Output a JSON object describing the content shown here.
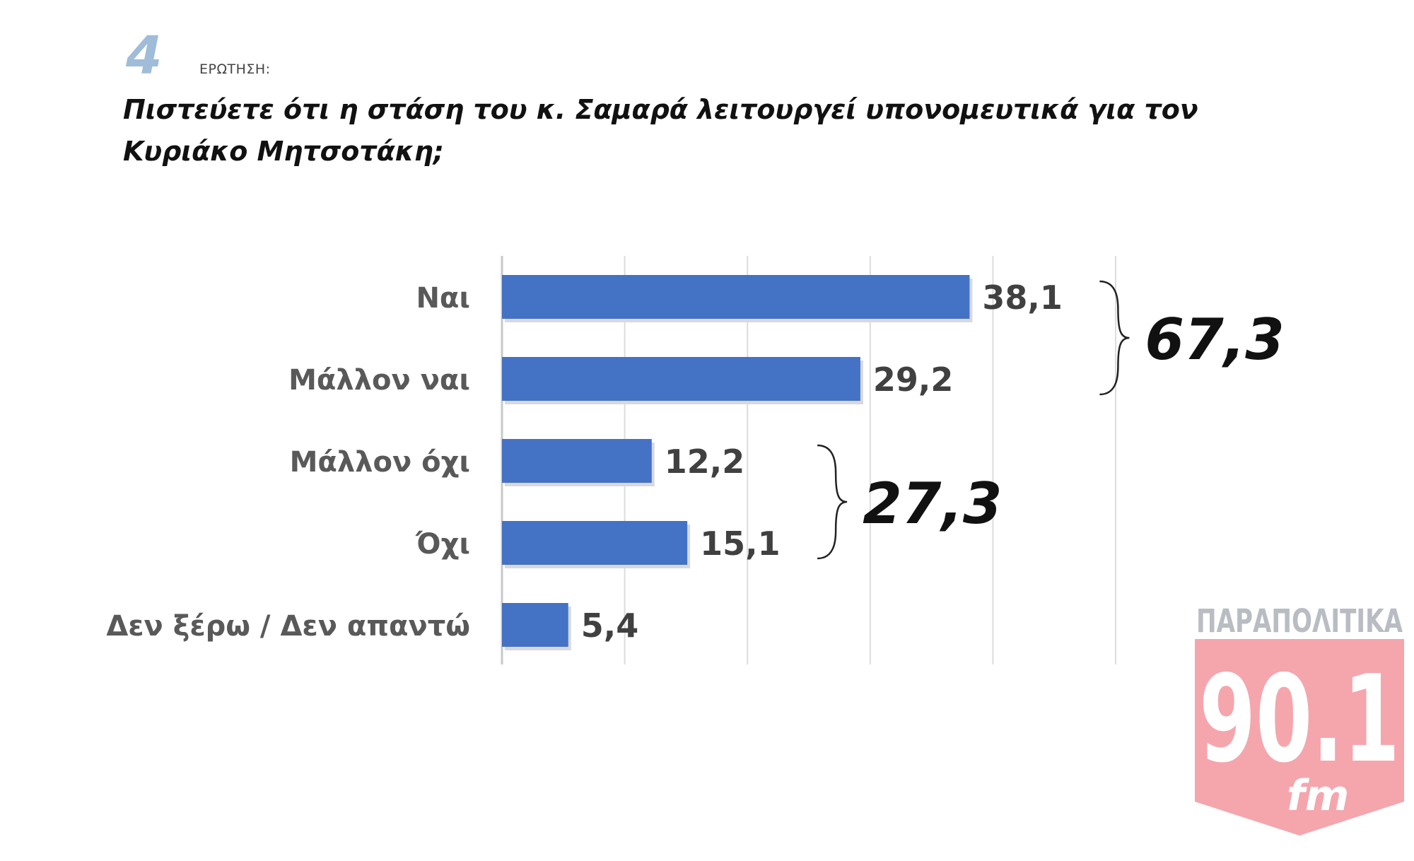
{
  "header": {
    "question_number": "4",
    "question_label": "ΕΡΩΤΗΣΗ:",
    "question_text": "Πιστεύετε ότι η στάση του κ. Σαμαρά λειτουργεί υπονομευτικά για τον Κυριάκο Μητσοτάκη;"
  },
  "chart_data": {
    "type": "bar",
    "orientation": "horizontal",
    "categories": [
      "Ναι",
      "Μάλλον ναι",
      "Μάλλον όχι",
      "Όχι",
      "Δεν ξέρω / Δεν απαντώ"
    ],
    "values": [
      38.1,
      29.2,
      12.2,
      15.1,
      5.4
    ],
    "value_labels": [
      "38,1",
      "29,2",
      "12,2",
      "15,1",
      "5,4"
    ],
    "xlim": [
      0,
      50
    ],
    "grid": true,
    "bar_color": "#4472c4",
    "groups": [
      {
        "label": "67,3",
        "members": [
          0,
          1
        ]
      },
      {
        "label": "27,3",
        "members": [
          2,
          3
        ]
      }
    ]
  },
  "logo": {
    "top_text": "ΠΑΡΑΠΟΛΙΤΙΚΑ",
    "number_text": "90.1",
    "fm_text": "fm",
    "color": "#e8354a"
  }
}
